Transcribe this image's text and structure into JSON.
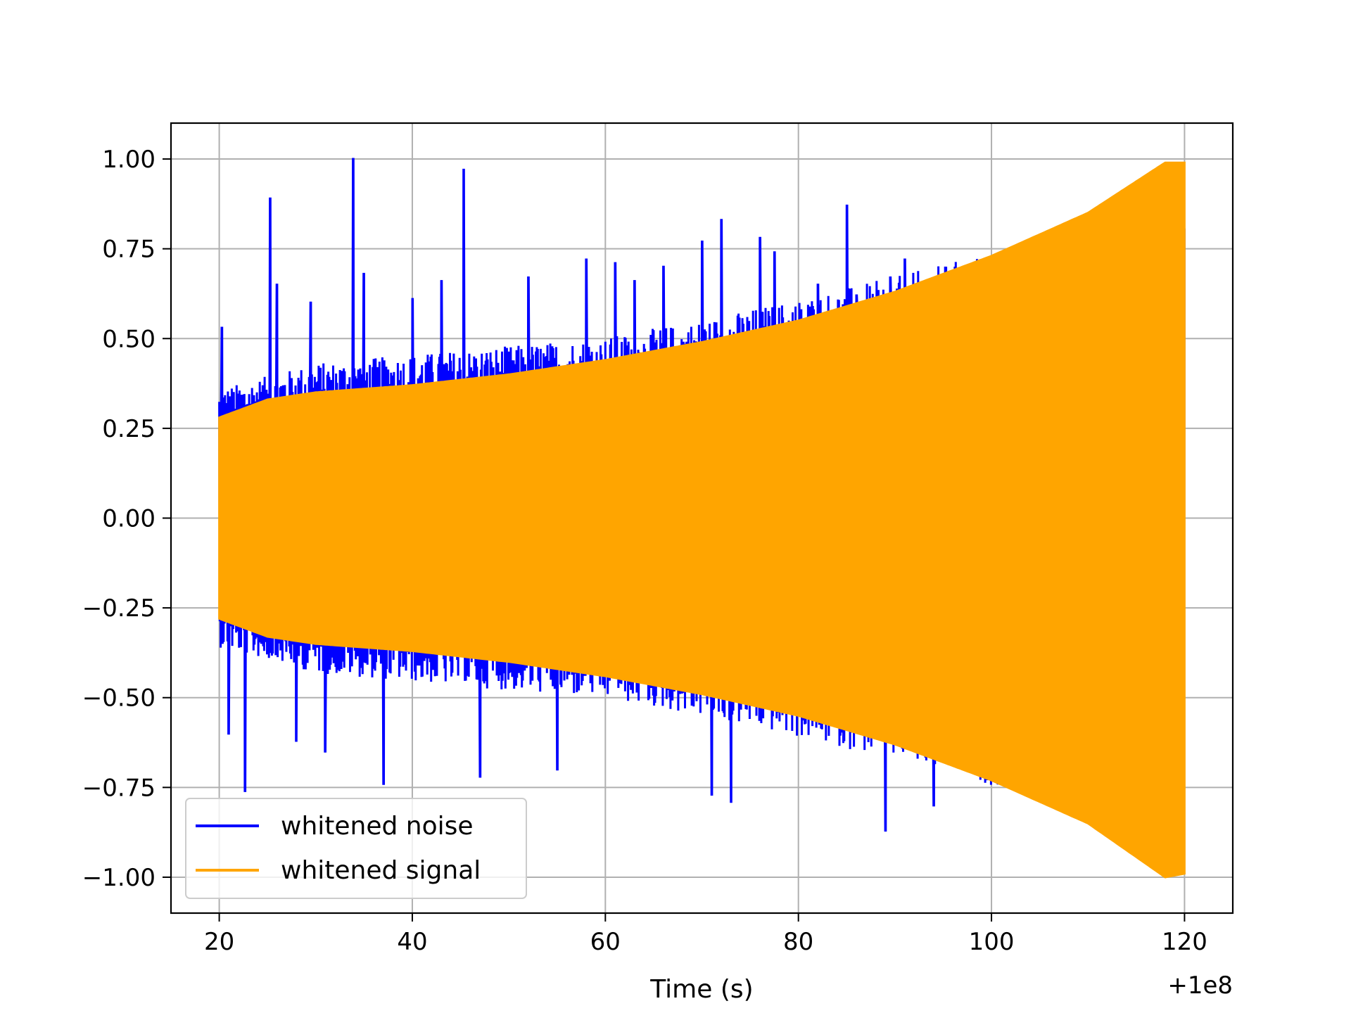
{
  "chart_data": {
    "type": "line",
    "title": "",
    "xlabel": "Time (s)",
    "ylabel": "",
    "x_offset_label": "+1e8",
    "xlim": [
      15,
      125
    ],
    "ylim": [
      -1.1,
      1.1
    ],
    "xticks": [
      20,
      40,
      60,
      80,
      100,
      120
    ],
    "xtick_labels": [
      "20",
      "40",
      "60",
      "80",
      "100",
      "120"
    ],
    "yticks": [
      1.0,
      0.75,
      0.5,
      0.25,
      0.0,
      -0.25,
      -0.5,
      -0.75,
      -1.0
    ],
    "ytick_labels": [
      "1.00",
      "0.75",
      "0.50",
      "0.25",
      "0.00",
      "−0.25",
      "−0.50",
      "−0.75",
      "−1.00"
    ],
    "grid": true,
    "legend_position": "lower-left",
    "series": [
      {
        "name": "whitened noise",
        "color": "#0000ff",
        "x_range": [
          20,
          120
        ],
        "envelope_x": [
          20,
          30,
          40,
          50,
          60,
          70,
          80,
          90,
          100,
          110,
          120
        ],
        "envelope_upper": [
          0.3,
          0.36,
          0.38,
          0.4,
          0.42,
          0.46,
          0.51,
          0.56,
          0.62,
          0.69,
          0.78
        ],
        "envelope_lower": [
          -0.3,
          -0.36,
          -0.38,
          -0.4,
          -0.42,
          -0.46,
          -0.51,
          -0.56,
          -0.62,
          -0.69,
          -0.78
        ],
        "spikes_x": [
          20.3,
          21.0,
          22.7,
          25.3,
          26.0,
          28.0,
          29.5,
          31.0,
          33.9,
          35.0,
          37.0,
          40.0,
          43.0,
          45.3,
          47.0,
          52.0,
          55.0,
          58.0,
          61.0,
          63.0,
          66.0,
          70.0,
          71.0,
          72.0,
          73.0,
          76.0,
          77.5,
          82.0,
          85.0,
          86.0,
          89.0,
          89.5,
          91.0,
          94.0
        ],
        "spikes_y": [
          0.53,
          -0.6,
          -0.76,
          0.89,
          0.65,
          -0.62,
          0.6,
          -0.65,
          1.0,
          0.68,
          -0.74,
          0.61,
          0.66,
          0.97,
          -0.72,
          0.67,
          -0.7,
          0.72,
          0.71,
          0.66,
          0.7,
          0.77,
          -0.77,
          0.83,
          -0.79,
          0.78,
          0.74,
          0.65,
          0.87,
          0.62,
          -0.87,
          0.67,
          0.72,
          -0.8
        ]
      },
      {
        "name": "whitened signal",
        "color": "#ffa500",
        "x_range": [
          20,
          120
        ],
        "envelope_x": [
          20,
          25,
          30,
          40,
          50,
          60,
          70,
          80,
          90,
          100,
          110,
          118,
          120
        ],
        "envelope_upper": [
          0.28,
          0.33,
          0.35,
          0.37,
          0.4,
          0.44,
          0.49,
          0.55,
          0.63,
          0.73,
          0.85,
          0.99,
          0.99
        ],
        "envelope_lower": [
          -0.28,
          -0.33,
          -0.35,
          -0.37,
          -0.4,
          -0.44,
          -0.49,
          -0.55,
          -0.63,
          -0.73,
          -0.85,
          -1.0,
          -0.99
        ]
      }
    ]
  }
}
